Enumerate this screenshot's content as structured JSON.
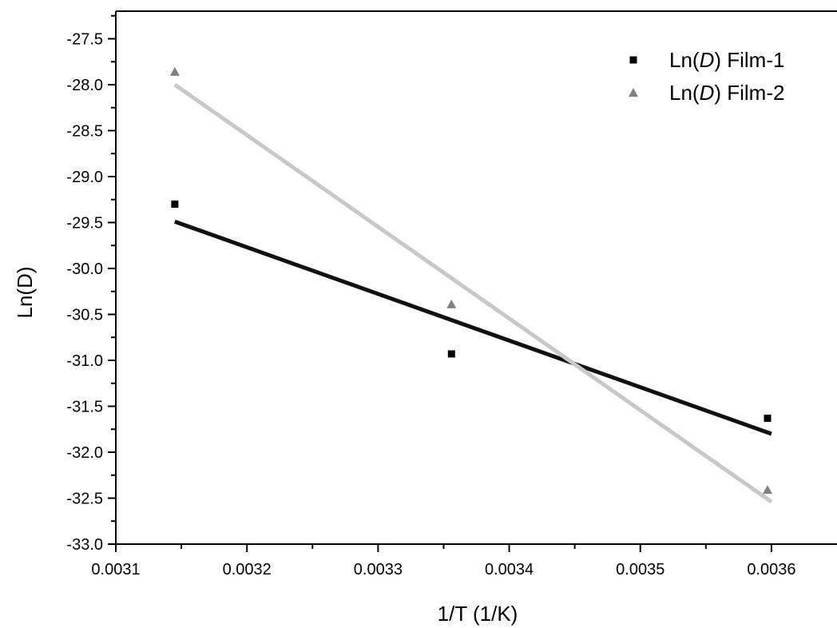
{
  "chart_data": {
    "type": "scatter",
    "xlabel": "1/T (1/K)",
    "ylabel": "Ln(D)",
    "xlim": [
      0.0031,
      0.00365
    ],
    "ylim": [
      -33.0,
      -27.2
    ],
    "x_ticks": [
      0.0031,
      0.0032,
      0.0033,
      0.0034,
      0.0035,
      0.0036
    ],
    "x_tick_labels": [
      "0.0031",
      "0.0032",
      "0.0033",
      "0.0034",
      "0.0035",
      "0.0036"
    ],
    "y_ticks": [
      -33.0,
      -32.5,
      -32.0,
      -31.5,
      -31.0,
      -30.5,
      -30.0,
      -29.5,
      -29.0,
      -28.5,
      -28.0,
      -27.5
    ],
    "y_tick_labels": [
      "-33.0",
      "-32.5",
      "-32.0",
      "-31.5",
      "-31.0",
      "-30.5",
      "-30.0",
      "-29.5",
      "-29.0",
      "-28.5",
      "-28.0",
      "-27.5"
    ],
    "legend_position": "top-right",
    "grid": false,
    "series": [
      {
        "name_prefix": "Ln(",
        "name_italic": "D",
        "name_suffix": ") Film-1",
        "marker": "square",
        "color": "#000000",
        "points": [
          {
            "x": 0.003145,
            "y": -29.3
          },
          {
            "x": 0.003356,
            "y": -30.93
          },
          {
            "x": 0.003597,
            "y": -31.63
          }
        ],
        "fit": {
          "x": [
            0.003145,
            0.0036
          ],
          "y": [
            -29.49,
            -31.8
          ]
        },
        "fit_color": "#111111"
      },
      {
        "name_prefix": "Ln(",
        "name_italic": "D",
        "name_suffix": ") Film-2",
        "marker": "triangle",
        "color": "#808080",
        "points": [
          {
            "x": 0.003145,
            "y": -27.86
          },
          {
            "x": 0.003356,
            "y": -30.39
          },
          {
            "x": 0.003597,
            "y": -32.41
          }
        ],
        "fit": {
          "x": [
            0.003145,
            0.0036
          ],
          "y": [
            -28.0,
            -32.54
          ]
        },
        "fit_color": "#c8c8c8"
      }
    ]
  }
}
